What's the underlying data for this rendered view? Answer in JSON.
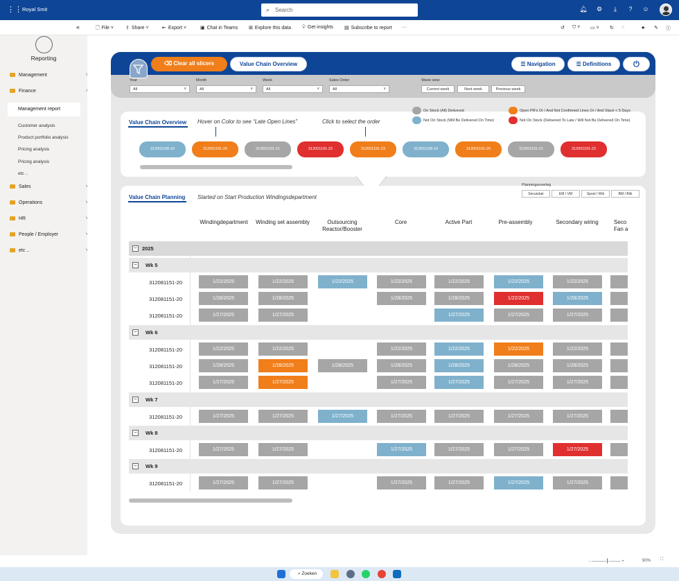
{
  "app": {
    "name": "Royal Smit",
    "search_placeholder": "Search"
  },
  "toolbar": {
    "collapse": "«",
    "file": "File",
    "share": "Share",
    "export": "Export",
    "chat": "Chat in Teams",
    "explore": "Explore this data",
    "insights": "Get insights",
    "subscribe": "Subscribe to report",
    "more": "···"
  },
  "sidebar": {
    "title": "Reporting",
    "groups": [
      {
        "label": "Management"
      },
      {
        "label": "Finance"
      }
    ],
    "finance_items": [
      "Management report",
      "Customer analysis",
      "Product portfolio analysis",
      "Pricing analysis",
      "Pricing analysis",
      "etc .."
    ],
    "groups2": [
      {
        "label": "Sales"
      },
      {
        "label": "Operations"
      },
      {
        "label": "HR"
      },
      {
        "label": "People / Employer"
      },
      {
        "label": "etc .."
      }
    ]
  },
  "report": {
    "clear": "Clear all slicers",
    "overview_btn": "Value Chain Overview",
    "navigation": "Navigation",
    "definitions": "Definitions",
    "filters": {
      "year": {
        "label": "Year",
        "value": "All"
      },
      "month": {
        "label": "Month",
        "value": "All"
      },
      "week": {
        "label": "Week",
        "value": "All"
      },
      "order": {
        "label": "Sales Order",
        "value": "All"
      }
    },
    "weekview": {
      "label": "Week view",
      "current": "Current week",
      "next": "Next week",
      "previous": "Previous week"
    },
    "overview": {
      "tab": "Value Chain Overview",
      "hint1": "Hover on Color to see “Late Open Lines”",
      "hint2": "Click to select the order",
      "legend": {
        "gray": "On Stock (All) Delivered",
        "blue": "Not On Stock (Will Be Delivered On Time)",
        "orange": "Open PR's Or / And Not Confirmed Lines Or / And Slack < 5 Days",
        "red": "Not On Stock (Delivered To Late / Will Not Be Delivered On Time)"
      },
      "colors": {
        "gray": "#a6a6a6",
        "blue": "#7fb1cc",
        "orange": "#f07e1a",
        "red": "#e02f2f"
      },
      "orders": [
        {
          "id": "312001108-10",
          "c": "b"
        },
        {
          "id": "312001191-20",
          "c": "o"
        },
        {
          "id": "312001191-21",
          "c": "g"
        },
        {
          "id": "312001191-22",
          "c": "r"
        },
        {
          "id": "312001191-23",
          "c": "o"
        },
        {
          "id": "312001108-10",
          "c": "b"
        },
        {
          "id": "312001191-20",
          "c": "o"
        },
        {
          "id": "312001191-21",
          "c": "g"
        },
        {
          "id": "312001191-22",
          "c": "r"
        }
      ]
    },
    "planning": {
      "tab": "Value Chain Planning",
      "subtitle": "Started on Start Production Windingsdepartment",
      "overleg": "Planningsoverleg",
      "buttons": [
        "Secundair",
        "EM / VM",
        "Spoel / Wik",
        "BM / Blik"
      ],
      "columns": [
        "Windingdepartment",
        "Winding set assembly",
        "Outsourcing Reactor/Booster",
        "Core",
        "Active Part",
        "Pre-assembly",
        "Secondary wiring",
        "Seco Fan a"
      ],
      "year": "2025"
    }
  }
}
